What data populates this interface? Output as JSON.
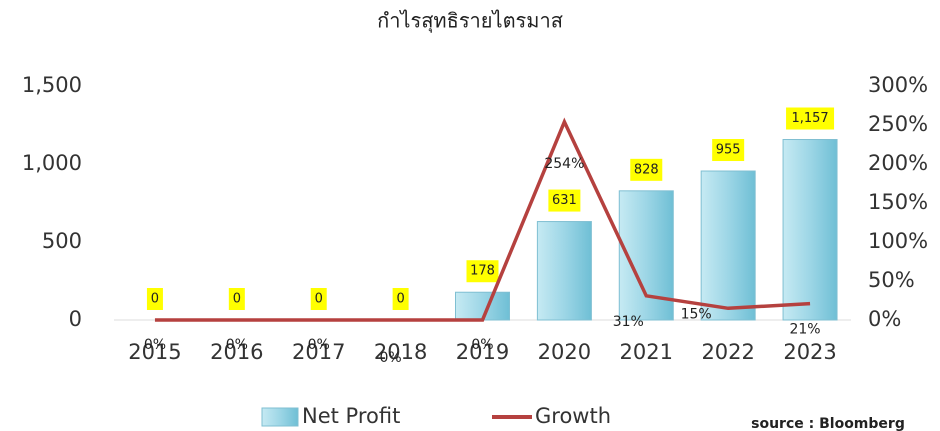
{
  "chart_data": {
    "type": "bar",
    "title": "กำไรสุทธิรายไตรมาส",
    "source": "source : Bloomberg",
    "categories": [
      "2015",
      "2016",
      "2017",
      "2018",
      "2019",
      "2020",
      "2021",
      "2022",
      "2023"
    ],
    "series": [
      {
        "name": "Net Profit",
        "color": "#9dd6e6",
        "values": [
          0,
          0,
          0,
          0,
          178,
          631,
          828,
          955,
          1157
        ],
        "value_labels": [
          "0",
          "0",
          "0",
          "0",
          "178",
          "631",
          "828",
          "955",
          "1,157"
        ]
      },
      {
        "name": "Growth",
        "type": "line",
        "axis": "y2",
        "color": "#b5413f",
        "values": [
          0,
          0,
          0,
          0,
          0,
          254,
          31,
          15,
          21
        ],
        "value_labels": [
          "0%",
          "0%",
          "0%",
          "0%",
          "0%",
          "254%",
          "31%",
          "15%",
          "21%"
        ]
      }
    ],
    "ylim": [
      0,
      1500
    ],
    "yticks": [
      0,
      500,
      {
        "value": 1000,
        "label": "1,000"
      },
      {
        "value": 1500,
        "label": "1,500"
      }
    ],
    "y2lim": [
      0,
      300
    ],
    "y2ticks": [
      {
        "value": 0,
        "label": "0%"
      },
      {
        "value": 50,
        "label": "50%"
      },
      {
        "value": 100,
        "label": "100%"
      },
      {
        "value": 150,
        "label": "150%"
      },
      {
        "value": 200,
        "label": "200%"
      },
      {
        "value": 250,
        "label": "250%"
      },
      {
        "value": 300,
        "label": "300%"
      }
    ],
    "grid": false
  }
}
